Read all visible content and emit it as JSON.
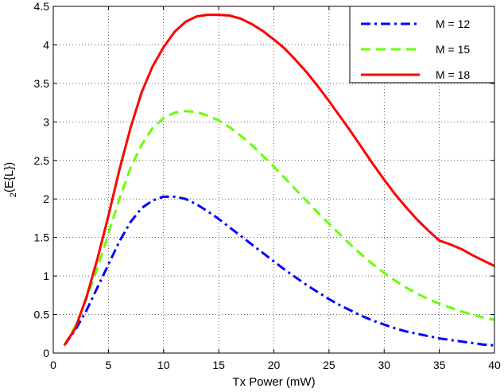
{
  "chart_data": {
    "type": "line",
    "xlabel": "Tx Power (mW)",
    "ylabel_main": "(E{L})",
    "ylabel_sub": "2",
    "xlim": [
      0,
      40
    ],
    "ylim": [
      0,
      4.5
    ],
    "xticks": [
      "0",
      "5",
      "10",
      "15",
      "20",
      "25",
      "30",
      "35",
      "40"
    ],
    "yticks": [
      "0",
      "0.5",
      "1",
      "1.5",
      "2",
      "2.5",
      "3",
      "3.5",
      "4",
      "4.5"
    ],
    "grid": true,
    "legend_position": "top-right",
    "x": [
      1,
      2,
      3,
      4,
      5,
      6,
      7,
      8,
      9,
      10,
      11,
      12,
      13,
      14,
      15,
      16,
      17,
      18,
      19,
      20,
      21,
      22,
      23,
      24,
      25,
      26,
      27,
      28,
      29,
      30,
      31,
      32,
      33,
      34,
      35,
      36,
      37,
      38,
      39,
      40
    ],
    "series": [
      {
        "name": "M = 12",
        "color": "#0000ff",
        "style": "dashdot",
        "values": [
          0.1,
          0.3,
          0.55,
          0.85,
          1.15,
          1.45,
          1.7,
          1.88,
          1.98,
          2.03,
          2.03,
          2.0,
          1.93,
          1.84,
          1.74,
          1.63,
          1.52,
          1.41,
          1.3,
          1.19,
          1.08,
          0.98,
          0.88,
          0.79,
          0.7,
          0.62,
          0.55,
          0.48,
          0.42,
          0.37,
          0.32,
          0.28,
          0.25,
          0.22,
          0.19,
          0.17,
          0.15,
          0.13,
          0.11,
          0.1
        ]
      },
      {
        "name": "M = 15",
        "color": "#66ff00",
        "style": "dashed",
        "values": [
          0.1,
          0.35,
          0.7,
          1.1,
          1.55,
          2.0,
          2.4,
          2.7,
          2.92,
          3.05,
          3.12,
          3.14,
          3.13,
          3.08,
          3.02,
          2.93,
          2.82,
          2.7,
          2.56,
          2.42,
          2.27,
          2.12,
          1.97,
          1.82,
          1.68,
          1.54,
          1.4,
          1.27,
          1.15,
          1.04,
          0.94,
          0.85,
          0.77,
          0.7,
          0.64,
          0.59,
          0.54,
          0.5,
          0.46,
          0.43
        ]
      },
      {
        "name": "M = 18",
        "color": "#ff0000",
        "style": "solid",
        "values": [
          0.1,
          0.32,
          0.72,
          1.22,
          1.78,
          2.38,
          2.92,
          3.38,
          3.72,
          3.97,
          4.17,
          4.3,
          4.37,
          4.39,
          4.39,
          4.38,
          4.34,
          4.27,
          4.18,
          4.07,
          3.95,
          3.8,
          3.64,
          3.46,
          3.27,
          3.07,
          2.87,
          2.66,
          2.45,
          2.25,
          2.06,
          1.89,
          1.73,
          1.59,
          1.46,
          1.41,
          1.35,
          1.27,
          1.2,
          1.13
        ]
      }
    ]
  }
}
